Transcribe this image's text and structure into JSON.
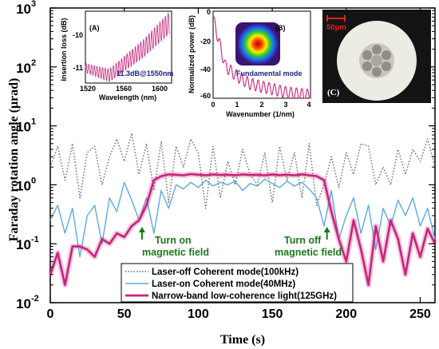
{
  "chart_data": [
    {
      "type": "line",
      "xlabel": "Time (s)",
      "ylabel": "Faraday rotation angle (μrad)",
      "xlim": [
        0,
        260
      ],
      "ylim": [
        0.01,
        1000
      ],
      "yscale": "log",
      "x_ticks": [
        "0",
        "50",
        "100",
        "150",
        "200",
        "250"
      ],
      "y_ticks": [
        "10^-2",
        "10^-1",
        "10^0",
        "10^1",
        "10^2",
        "10^3"
      ],
      "legend": "bottom-center",
      "series": [
        {
          "name": "Laser-off Coherent mode(100kHz)",
          "color": "#666666",
          "style": "dotted",
          "x": [
            0,
            5,
            10,
            15,
            20,
            25,
            30,
            35,
            40,
            45,
            50,
            55,
            60,
            65,
            70,
            75,
            80,
            85,
            90,
            95,
            100,
            105,
            110,
            115,
            120,
            125,
            130,
            135,
            140,
            145,
            150,
            155,
            160,
            165,
            170,
            175,
            180,
            185,
            190,
            195,
            200,
            205,
            210,
            215,
            220,
            225,
            230,
            235,
            240,
            245,
            250,
            255,
            260
          ],
          "values": [
            2.0,
            4.5,
            1.2,
            5.0,
            0.6,
            3.5,
            4.5,
            1.0,
            3.0,
            6.0,
            2.5,
            7.5,
            1.5,
            5.0,
            0.8,
            5.5,
            0.5,
            4.5,
            2.0,
            6.0,
            3.5,
            0.4,
            4.5,
            0.6,
            2.5,
            1.0,
            4.0,
            1.5,
            1.0,
            3.5,
            0.5,
            4.5,
            1.2,
            3.5,
            0.6,
            5.0,
            0.45,
            1.0,
            3.0,
            0.9,
            3.5,
            1.5,
            5.0,
            4.5,
            1.0,
            2.0,
            1.0,
            4.0,
            1.5,
            4.0,
            2.5,
            6.0,
            2.0
          ]
        },
        {
          "name": "Laser-on Coherent mode(40MHz)",
          "color": "#5aa9e6",
          "style": "solid",
          "x": [
            0,
            5,
            10,
            15,
            20,
            25,
            30,
            35,
            40,
            45,
            50,
            55,
            60,
            65,
            70,
            75,
            80,
            85,
            90,
            95,
            100,
            105,
            110,
            115,
            120,
            125,
            130,
            135,
            140,
            145,
            150,
            155,
            160,
            165,
            170,
            175,
            180,
            185,
            190,
            195,
            200,
            205,
            210,
            215,
            220,
            225,
            230,
            235,
            240,
            245,
            250,
            255,
            260
          ],
          "values": [
            0.25,
            0.45,
            0.15,
            0.4,
            0.06,
            0.3,
            0.45,
            0.1,
            0.6,
            0.35,
            1.1,
            0.55,
            0.25,
            0.6,
            0.15,
            0.8,
            0.4,
            1.0,
            0.85,
            1.1,
            0.9,
            1.2,
            0.95,
            1.1,
            1.0,
            1.15,
            0.8,
            1.05,
            0.95,
            1.25,
            1.05,
            0.9,
            1.15,
            0.95,
            1.1,
            0.85,
            0.6,
            0.2,
            0.8,
            0.12,
            0.3,
            0.6,
            0.15,
            0.45,
            0.08,
            0.4,
            0.2,
            0.55,
            0.3,
            0.6,
            0.2,
            0.4,
            0.12
          ]
        },
        {
          "name": "Narrow-band low-coherence light(125GHz)",
          "color": "#c8237a",
          "style": "solid",
          "x": [
            0,
            5,
            10,
            15,
            20,
            25,
            30,
            35,
            40,
            45,
            50,
            55,
            60,
            65,
            70,
            75,
            80,
            85,
            90,
            95,
            100,
            105,
            110,
            115,
            120,
            125,
            130,
            135,
            140,
            145,
            150,
            155,
            160,
            165,
            170,
            175,
            180,
            185,
            190,
            195,
            200,
            205,
            210,
            215,
            220,
            225,
            230,
            235,
            240,
            245,
            250,
            255,
            260
          ],
          "values": [
            0.03,
            0.07,
            0.02,
            0.09,
            0.09,
            0.08,
            0.06,
            0.12,
            0.1,
            0.15,
            0.13,
            0.2,
            0.25,
            0.45,
            1.2,
            1.4,
            1.5,
            1.48,
            1.45,
            1.52,
            1.48,
            1.45,
            1.5,
            1.47,
            1.48,
            1.45,
            1.5,
            1.47,
            1.48,
            1.45,
            1.5,
            1.46,
            1.48,
            1.45,
            1.5,
            1.45,
            1.4,
            1.2,
            0.35,
            0.12,
            0.05,
            0.25,
            0.08,
            0.02,
            0.2,
            0.05,
            0.25,
            0.12,
            0.03,
            0.15,
            0.06,
            0.18,
            0.1
          ]
        }
      ],
      "annotations": [
        {
          "text": [
            "Turn on",
            "magnetic field"
          ],
          "x": 62
        },
        {
          "text": [
            "Turn off",
            "magnetic field"
          ],
          "x": 187
        }
      ]
    },
    {
      "type": "line",
      "panel": "(A)",
      "xlabel": "Wavelength (nm)",
      "ylabel": "Insertion loss (dB)",
      "xlim": [
        1520,
        1610
      ],
      "ylim": [
        -11.5,
        -9.6
      ],
      "x_ticks": [
        "1520",
        "1560",
        "1600"
      ],
      "y_ticks": [
        "-11",
        "-10"
      ],
      "annotation": "11.3dB@1550nm",
      "series": [
        {
          "color": "#c8237a",
          "x": [
            1520,
            1545,
            1560,
            1580,
            1600,
            1608
          ],
          "values": [
            -11.1,
            -11.3,
            -11.0,
            -10.6,
            -10.1,
            -9.9
          ]
        }
      ]
    },
    {
      "type": "line",
      "panel": "(B)",
      "xlabel": "Wavenumber (1/nm)",
      "ylabel": "Normalized power (dB)",
      "xlim": [
        0,
        4
      ],
      "ylim": [
        -60,
        0
      ],
      "x_ticks": [
        "0",
        "1",
        "2",
        "3",
        "4"
      ],
      "y_ticks": [
        "0",
        "-20",
        "-40",
        "-60"
      ],
      "annotation": "Fundamental mode",
      "series": [
        {
          "color": "#c8237a",
          "x": [
            0,
            0.5,
            1,
            1.5,
            2,
            2.5,
            3,
            3.5,
            4
          ],
          "values": [
            -5,
            -38,
            -45,
            -50,
            -52,
            -54,
            -56,
            -57,
            -58
          ]
        }
      ]
    }
  ],
  "panels": {
    "a_label": "(A)",
    "b_label": "(B)",
    "c_label": "(C)",
    "scale_bar": "50μm",
    "b_annotation": "Fundamental mode",
    "a_annotation": "11.3dB@1550nm"
  }
}
